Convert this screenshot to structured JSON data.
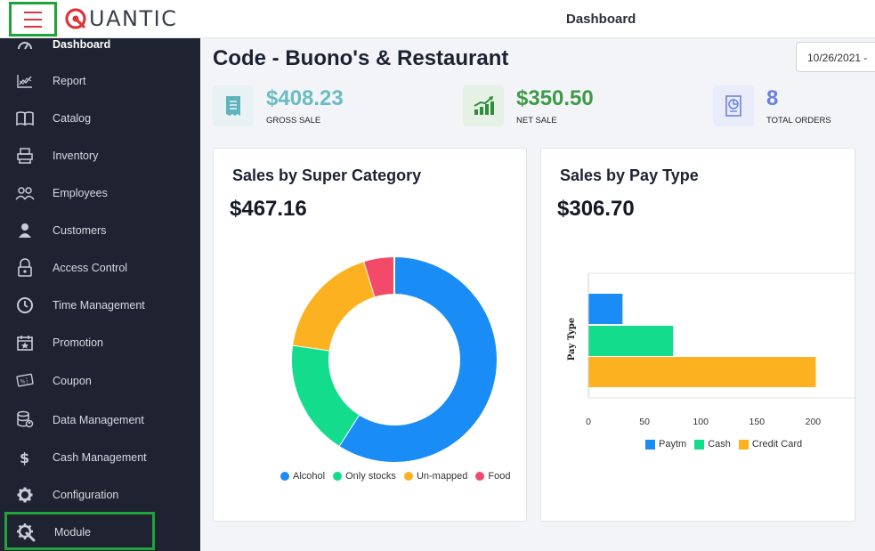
{
  "header": {
    "brand": "UANTIC",
    "title": "Dashboard"
  },
  "sidebar": {
    "items": [
      {
        "label": "Dashboard",
        "icon": "dashboard-gauge-icon"
      },
      {
        "label": "Report",
        "icon": "report-chart-icon"
      },
      {
        "label": "Catalog",
        "icon": "catalog-book-icon"
      },
      {
        "label": "Inventory",
        "icon": "inventory-pallet-icon"
      },
      {
        "label": "Employees",
        "icon": "employees-group-icon"
      },
      {
        "label": "Customers",
        "icon": "customer-person-icon"
      },
      {
        "label": "Access Control",
        "icon": "lock-icon"
      },
      {
        "label": "Time Management",
        "icon": "clock-icon"
      },
      {
        "label": "Promotion",
        "icon": "calendar-star-icon"
      },
      {
        "label": "Coupon",
        "icon": "coupon-ticket-icon"
      },
      {
        "label": "Data Management",
        "icon": "database-user-icon"
      },
      {
        "label": "Cash Management",
        "icon": "dollar-icon"
      },
      {
        "label": "Configuration",
        "icon": "gear-icon"
      },
      {
        "label": "Module",
        "icon": "module-gear-wrench-icon"
      }
    ]
  },
  "main": {
    "page_title": "Code - Buono's & Restaurant",
    "date_value": "10/26/2021 -",
    "stats": [
      {
        "value": "$408.23",
        "caption": "GROSS SALE",
        "color": "#6bbbc3",
        "tile_color": "#e8f2f4"
      },
      {
        "value": "$350.50",
        "caption": "NET SALE",
        "color": "#3f9a48",
        "tile_color": "#e6f1e6"
      },
      {
        "value": "8",
        "caption": "TOTAL ORDERS",
        "color": "#6b82dc",
        "tile_color": "#e9ecfa"
      }
    ]
  },
  "cards": {
    "super_category": {
      "title": "Sales by Super Category",
      "total": "$467.16"
    },
    "pay_type": {
      "title": "Sales by Pay Type",
      "total": "$306.70"
    }
  },
  "chart_data": [
    {
      "type": "pie",
      "variant": "donut",
      "labels": [
        "Alcohol",
        "Only stocks",
        "Un-mapped",
        "Food"
      ],
      "values": [
        276.0,
        85.0,
        84.0,
        22.16
      ],
      "colors": [
        "#1a8cf6",
        "#13dd8c",
        "#fcb220",
        "#f24a68"
      ],
      "legend": "bottom"
    },
    {
      "type": "bar",
      "orientation": "horizontal",
      "categories": [
        "Paytm",
        "Cash",
        "Credit Card"
      ],
      "values": [
        30,
        75,
        202
      ],
      "colors": [
        "#1a8cf6",
        "#13dd8c",
        "#fcb220"
      ],
      "ylabel": "Pay Type",
      "xlim": [
        0,
        250
      ],
      "xticks": [
        "0",
        "50",
        "100",
        "150",
        "200",
        "250"
      ],
      "legend": "bottom"
    }
  ]
}
